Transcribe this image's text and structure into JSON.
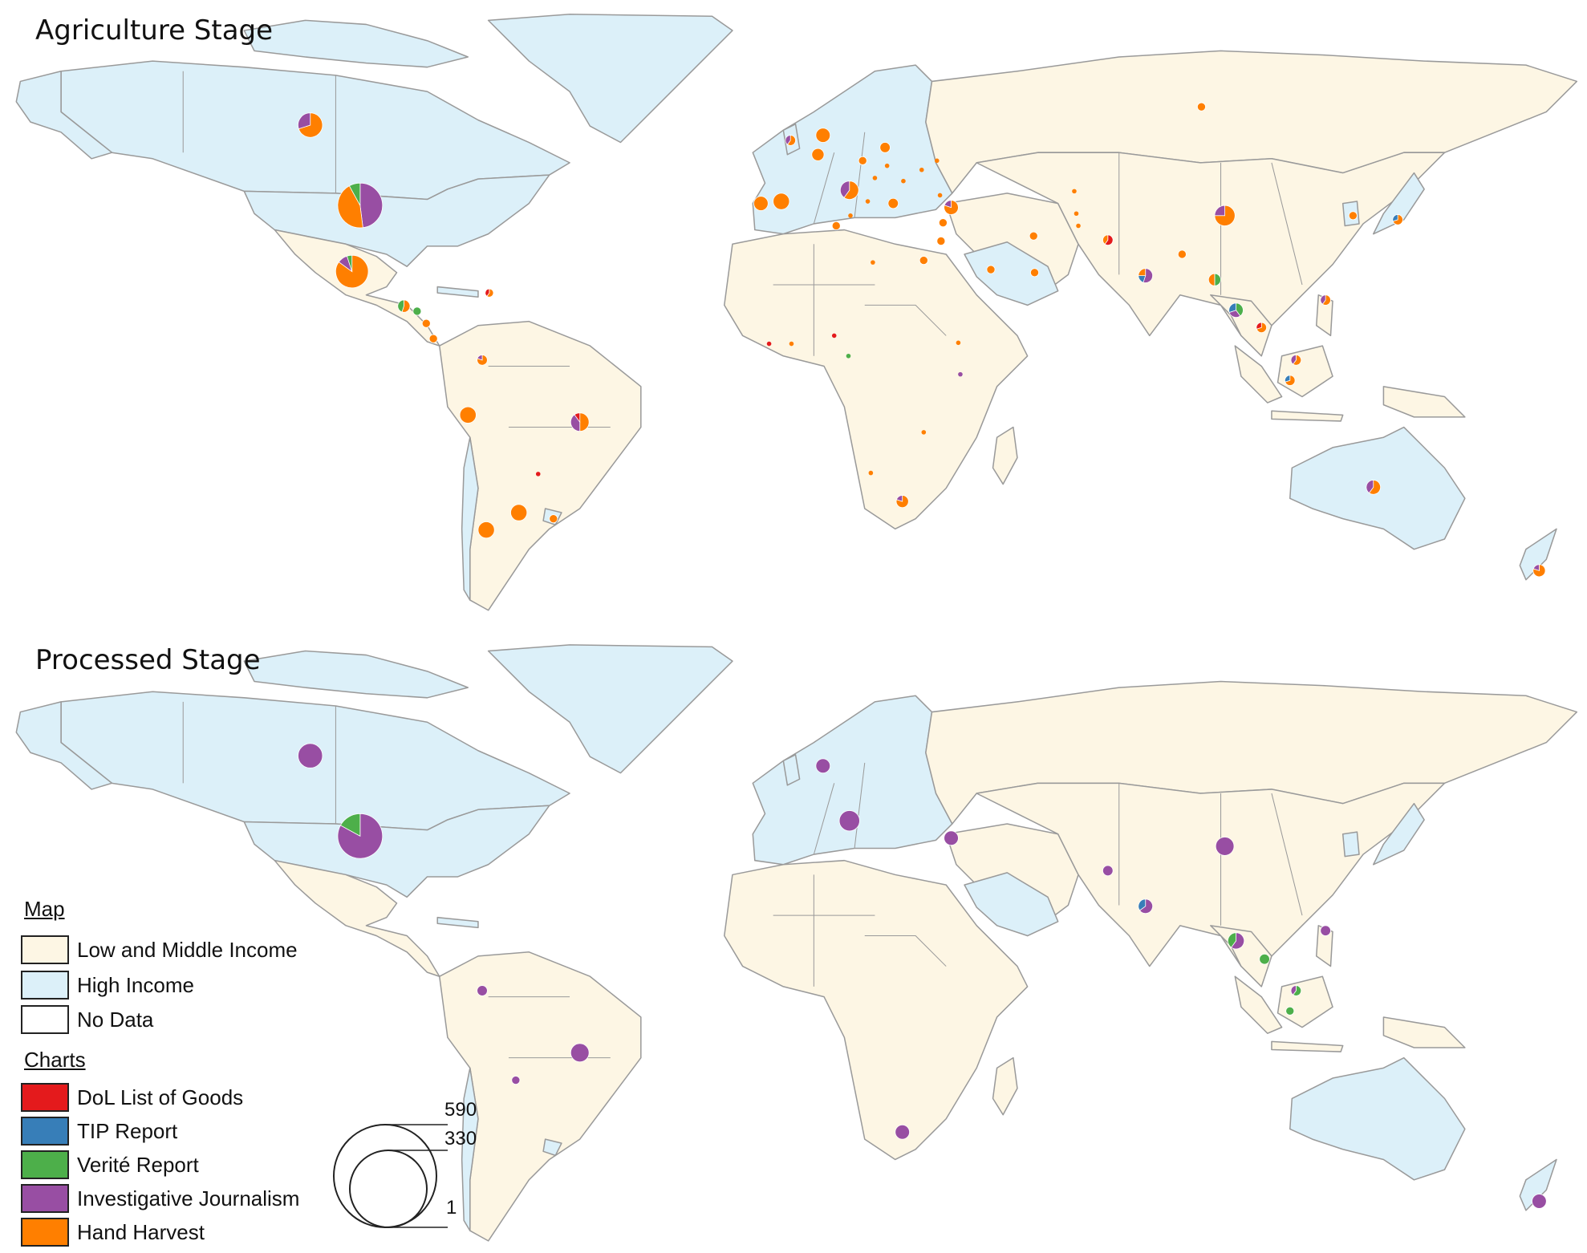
{
  "panels": [
    {
      "title": "Agriculture Stage"
    },
    {
      "title": "Processed Stage"
    }
  ],
  "colors": {
    "low_middle_income": "#fdf6e4",
    "high_income": "#dcf0f9",
    "no_data": "#ffffff",
    "border": "#9a9a9a",
    "dol": "#e41a1c",
    "tip": "#377eb8",
    "verite": "#4daf4a",
    "journalism": "#984ea3",
    "harvest": "#ff7f00"
  },
  "legend": {
    "map_heading": "Map",
    "map_items": [
      {
        "label": "Low and Middle Income",
        "color": "#fdf6e4"
      },
      {
        "label": "High Income",
        "color": "#dcf0f9"
      },
      {
        "label": "No Data",
        "color": "#ffffff"
      }
    ],
    "charts_heading": "Charts",
    "chart_items": [
      {
        "label": "DoL List of Goods",
        "color": "#e41a1c"
      },
      {
        "label": "TIP Report",
        "color": "#377eb8"
      },
      {
        "label": "Verité Report",
        "color": "#4daf4a"
      },
      {
        "label": "Investigative Journalism",
        "color": "#984ea3"
      },
      {
        "label": "Hand Harvest",
        "color": "#ff7f00"
      }
    ],
    "size_key": {
      "values": [
        "590",
        "330",
        "1"
      ]
    }
  },
  "markers": {
    "agriculture": [
      {
        "place": "Canada",
        "slices": [
          {
            "k": "harvest",
            "f": 0.7
          },
          {
            "k": "journalism",
            "f": 0.3
          }
        ]
      },
      {
        "place": "United States",
        "slices": [
          {
            "k": "journalism",
            "f": 0.48
          },
          {
            "k": "harvest",
            "f": 0.44
          },
          {
            "k": "verite",
            "f": 0.08
          }
        ]
      },
      {
        "place": "Mexico",
        "slices": [
          {
            "k": "harvest",
            "f": 0.85
          },
          {
            "k": "journalism",
            "f": 0.1
          },
          {
            "k": "verite",
            "f": 0.05
          }
        ]
      },
      {
        "place": "Guatemala",
        "slices": [
          {
            "k": "harvest",
            "f": 0.55
          },
          {
            "k": "verite",
            "f": 0.45
          }
        ]
      },
      {
        "place": "Honduras",
        "slices": [
          {
            "k": "verite",
            "f": 1
          }
        ]
      },
      {
        "place": "Nicaragua",
        "slices": [
          {
            "k": "harvest",
            "f": 1
          }
        ]
      },
      {
        "place": "Costa Rica",
        "slices": [
          {
            "k": "harvest",
            "f": 1
          }
        ]
      },
      {
        "place": "Dominican Republic",
        "slices": [
          {
            "k": "harvest",
            "f": 0.6
          },
          {
            "k": "dol",
            "f": 0.4
          }
        ]
      },
      {
        "place": "Colombia",
        "slices": [
          {
            "k": "harvest",
            "f": 0.8
          },
          {
            "k": "journalism",
            "f": 0.2
          }
        ]
      },
      {
        "place": "Peru",
        "slices": [
          {
            "k": "harvest",
            "f": 1
          }
        ]
      },
      {
        "place": "Brazil",
        "slices": [
          {
            "k": "harvest",
            "f": 0.5
          },
          {
            "k": "journalism",
            "f": 0.4
          },
          {
            "k": "dol",
            "f": 0.1
          }
        ]
      },
      {
        "place": "Paraguay",
        "slices": [
          {
            "k": "harvest",
            "f": 1
          }
        ]
      },
      {
        "place": "Argentina",
        "slices": [
          {
            "k": "harvest",
            "f": 1
          }
        ]
      },
      {
        "place": "Chile",
        "slices": [
          {
            "k": "harvest",
            "f": 1
          }
        ]
      },
      {
        "place": "Uruguay",
        "slices": [
          {
            "k": "harvest",
            "f": 1
          }
        ]
      },
      {
        "place": "Ireland",
        "slices": [
          {
            "k": "harvest",
            "f": 0.6
          },
          {
            "k": "journalism",
            "f": 0.4
          }
        ]
      },
      {
        "place": "United Kingdom",
        "slices": [
          {
            "k": "harvest",
            "f": 1
          }
        ]
      },
      {
        "place": "France",
        "slices": [
          {
            "k": "harvest",
            "f": 1
          }
        ]
      },
      {
        "place": "Spain",
        "slices": [
          {
            "k": "harvest",
            "f": 1
          }
        ]
      },
      {
        "place": "Portugal",
        "slices": [
          {
            "k": "harvest",
            "f": 1
          }
        ]
      },
      {
        "place": "Italy",
        "slices": [
          {
            "k": "harvest",
            "f": 0.6
          },
          {
            "k": "journalism",
            "f": 0.4
          }
        ]
      },
      {
        "place": "Germany",
        "slices": [
          {
            "k": "harvest",
            "f": 1
          }
        ]
      },
      {
        "place": "Poland",
        "slices": [
          {
            "k": "harvest",
            "f": 1
          }
        ]
      },
      {
        "place": "Greece",
        "slices": [
          {
            "k": "harvest",
            "f": 1
          }
        ]
      },
      {
        "place": "Turkey",
        "slices": [
          {
            "k": "harvest",
            "f": 0.8
          },
          {
            "k": "journalism",
            "f": 0.2
          }
        ]
      },
      {
        "place": "Lebanon",
        "slices": [
          {
            "k": "harvest",
            "f": 1
          }
        ]
      },
      {
        "place": "Israel",
        "slices": [
          {
            "k": "harvest",
            "f": 1
          }
        ]
      },
      {
        "place": "Egypt",
        "slices": [
          {
            "k": "harvest",
            "f": 1
          }
        ]
      },
      {
        "place": "Tunisia",
        "slices": [
          {
            "k": "harvest",
            "f": 1
          }
        ]
      },
      {
        "place": "Saudi Arabia",
        "slices": [
          {
            "k": "harvest",
            "f": 1
          }
        ]
      },
      {
        "place": "Oman",
        "slices": [
          {
            "k": "harvest",
            "f": 1
          }
        ]
      },
      {
        "place": "Iran",
        "slices": [
          {
            "k": "harvest",
            "f": 1
          }
        ]
      },
      {
        "place": "Russia",
        "slices": [
          {
            "k": "harvest",
            "f": 1
          }
        ]
      },
      {
        "place": "Pakistan",
        "slices": [
          {
            "k": "dol",
            "f": 0.6
          },
          {
            "k": "harvest",
            "f": 0.4
          }
        ]
      },
      {
        "place": "India",
        "slices": [
          {
            "k": "journalism",
            "f": 0.55
          },
          {
            "k": "tip",
            "f": 0.2
          },
          {
            "k": "harvest",
            "f": 0.25
          }
        ]
      },
      {
        "place": "Bangladesh",
        "slices": [
          {
            "k": "harvest",
            "f": 1
          }
        ]
      },
      {
        "place": "China",
        "slices": [
          {
            "k": "harvest",
            "f": 0.75
          },
          {
            "k": "journalism",
            "f": 0.25
          }
        ]
      },
      {
        "place": "South Korea",
        "slices": [
          {
            "k": "harvest",
            "f": 1
          }
        ]
      },
      {
        "place": "Japan",
        "slices": [
          {
            "k": "harvest",
            "f": 0.7
          },
          {
            "k": "tip",
            "f": 0.3
          }
        ]
      },
      {
        "place": "Myanmar",
        "slices": [
          {
            "k": "verite",
            "f": 0.5
          },
          {
            "k": "harvest",
            "f": 0.5
          }
        ]
      },
      {
        "place": "Thailand",
        "slices": [
          {
            "k": "verite",
            "f": 0.4
          },
          {
            "k": "journalism",
            "f": 0.3
          },
          {
            "k": "tip",
            "f": 0.3
          }
        ]
      },
      {
        "place": "Cambodia",
        "slices": [
          {
            "k": "harvest",
            "f": 0.7
          },
          {
            "k": "dol",
            "f": 0.3
          }
        ]
      },
      {
        "place": "Philippines",
        "slices": [
          {
            "k": "harvest",
            "f": 0.6
          },
          {
            "k": "journalism",
            "f": 0.4
          }
        ]
      },
      {
        "place": "Malaysia",
        "slices": [
          {
            "k": "harvest",
            "f": 0.6
          },
          {
            "k": "journalism",
            "f": 0.4
          }
        ]
      },
      {
        "place": "Indonesia",
        "slices": [
          {
            "k": "harvest",
            "f": 0.7
          },
          {
            "k": "tip",
            "f": 0.3
          }
        ]
      },
      {
        "place": "South Africa",
        "slices": [
          {
            "k": "harvest",
            "f": 0.8
          },
          {
            "k": "journalism",
            "f": 0.2
          }
        ]
      },
      {
        "place": "Australia",
        "slices": [
          {
            "k": "harvest",
            "f": 0.6
          },
          {
            "k": "journalism",
            "f": 0.4
          }
        ]
      },
      {
        "place": "New Zealand",
        "slices": [
          {
            "k": "harvest",
            "f": 0.8
          },
          {
            "k": "journalism",
            "f": 0.2
          }
        ]
      }
    ],
    "processed": [
      {
        "place": "Canada",
        "slices": [
          {
            "k": "journalism",
            "f": 1
          }
        ]
      },
      {
        "place": "United States",
        "slices": [
          {
            "k": "journalism",
            "f": 0.83
          },
          {
            "k": "verite",
            "f": 0.17
          }
        ]
      },
      {
        "place": "Colombia",
        "slices": [
          {
            "k": "journalism",
            "f": 1
          }
        ]
      },
      {
        "place": "Brazil",
        "slices": [
          {
            "k": "journalism",
            "f": 1
          }
        ]
      },
      {
        "place": "Bolivia",
        "slices": [
          {
            "k": "journalism",
            "f": 1
          }
        ]
      },
      {
        "place": "United Kingdom",
        "slices": [
          {
            "k": "journalism",
            "f": 1
          }
        ]
      },
      {
        "place": "Italy",
        "slices": [
          {
            "k": "journalism",
            "f": 1
          }
        ]
      },
      {
        "place": "Turkey",
        "slices": [
          {
            "k": "journalism",
            "f": 1
          }
        ]
      },
      {
        "place": "Pakistan",
        "slices": [
          {
            "k": "journalism",
            "f": 1
          }
        ]
      },
      {
        "place": "India",
        "slices": [
          {
            "k": "journalism",
            "f": 0.65
          },
          {
            "k": "tip",
            "f": 0.35
          }
        ]
      },
      {
        "place": "China",
        "slices": [
          {
            "k": "journalism",
            "f": 1
          }
        ]
      },
      {
        "place": "Thailand",
        "slices": [
          {
            "k": "journalism",
            "f": 0.6
          },
          {
            "k": "verite",
            "f": 0.4
          }
        ]
      },
      {
        "place": "Vietnam",
        "slices": [
          {
            "k": "verite",
            "f": 1
          }
        ]
      },
      {
        "place": "Philippines",
        "slices": [
          {
            "k": "journalism",
            "f": 1
          }
        ]
      },
      {
        "place": "Malaysia",
        "slices": [
          {
            "k": "verite",
            "f": 0.6
          },
          {
            "k": "journalism",
            "f": 0.4
          }
        ]
      },
      {
        "place": "Indonesia",
        "slices": [
          {
            "k": "verite",
            "f": 1
          }
        ]
      },
      {
        "place": "South Africa",
        "slices": [
          {
            "k": "journalism",
            "f": 1
          }
        ]
      },
      {
        "place": "New Zealand",
        "slices": [
          {
            "k": "journalism",
            "f": 1
          }
        ]
      }
    ]
  }
}
